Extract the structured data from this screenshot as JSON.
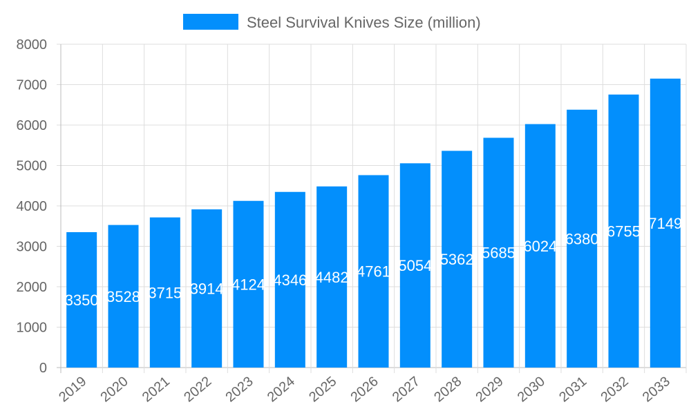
{
  "chart_data": {
    "type": "bar",
    "legend": {
      "position": "top",
      "entries": [
        "Steel Survival Knives Size (million)"
      ]
    },
    "categories": [
      "2019",
      "2020",
      "2021",
      "2022",
      "2023",
      "2024",
      "2025",
      "2026",
      "2027",
      "2028",
      "2029",
      "2030",
      "2031",
      "2032",
      "2033"
    ],
    "series": [
      {
        "name": "Steel Survival Knives Size (million)",
        "values": [
          3350,
          3528,
          3715,
          3914,
          4124,
          4346,
          4482,
          4761,
          5054,
          5362,
          5685,
          6024,
          6380,
          6755,
          7149
        ],
        "color": "#038ffc"
      }
    ],
    "ylim": [
      0,
      8000
    ],
    "yticks": [
      0,
      1000,
      2000,
      3000,
      4000,
      5000,
      6000,
      7000,
      8000
    ],
    "grid": true,
    "data_labels": true
  }
}
